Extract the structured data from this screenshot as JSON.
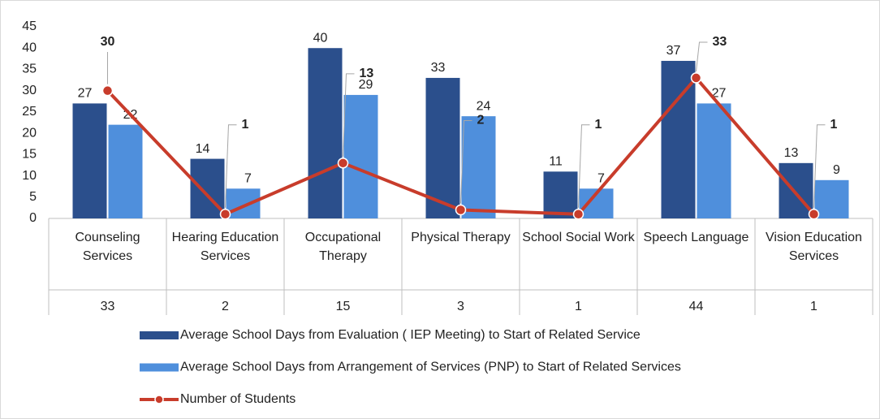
{
  "chart_data": {
    "type": "bar-line",
    "categories": [
      "Counseling Services",
      "Hearing Education Services",
      "Occupational Therapy",
      "Physical Therapy",
      "School Social Work",
      "Speech Language",
      "Vision Education Services"
    ],
    "series": [
      {
        "name": "Average School Days from Evaluation ( IEP Meeting) to Start of Related Service",
        "type": "bar",
        "color": "#2b4f8c",
        "values": [
          27,
          14,
          40,
          33,
          11,
          37,
          13
        ]
      },
      {
        "name": "Average School Days from Arrangement of Services (PNP) to Start of Related Services",
        "type": "bar",
        "color": "#4f8fdc",
        "values": [
          22,
          7,
          29,
          24,
          7,
          27,
          9
        ]
      },
      {
        "name": "Number of Students",
        "type": "line",
        "color": "#c83c2b",
        "values": [
          30,
          1,
          13,
          2,
          1,
          33,
          1
        ]
      }
    ],
    "table_row": [
      33,
      2,
      15,
      3,
      1,
      44,
      1
    ],
    "ylim": [
      0,
      45
    ],
    "yticks": [
      0,
      5,
      10,
      15,
      20,
      25,
      30,
      35,
      40,
      45
    ],
    "grid": false
  }
}
